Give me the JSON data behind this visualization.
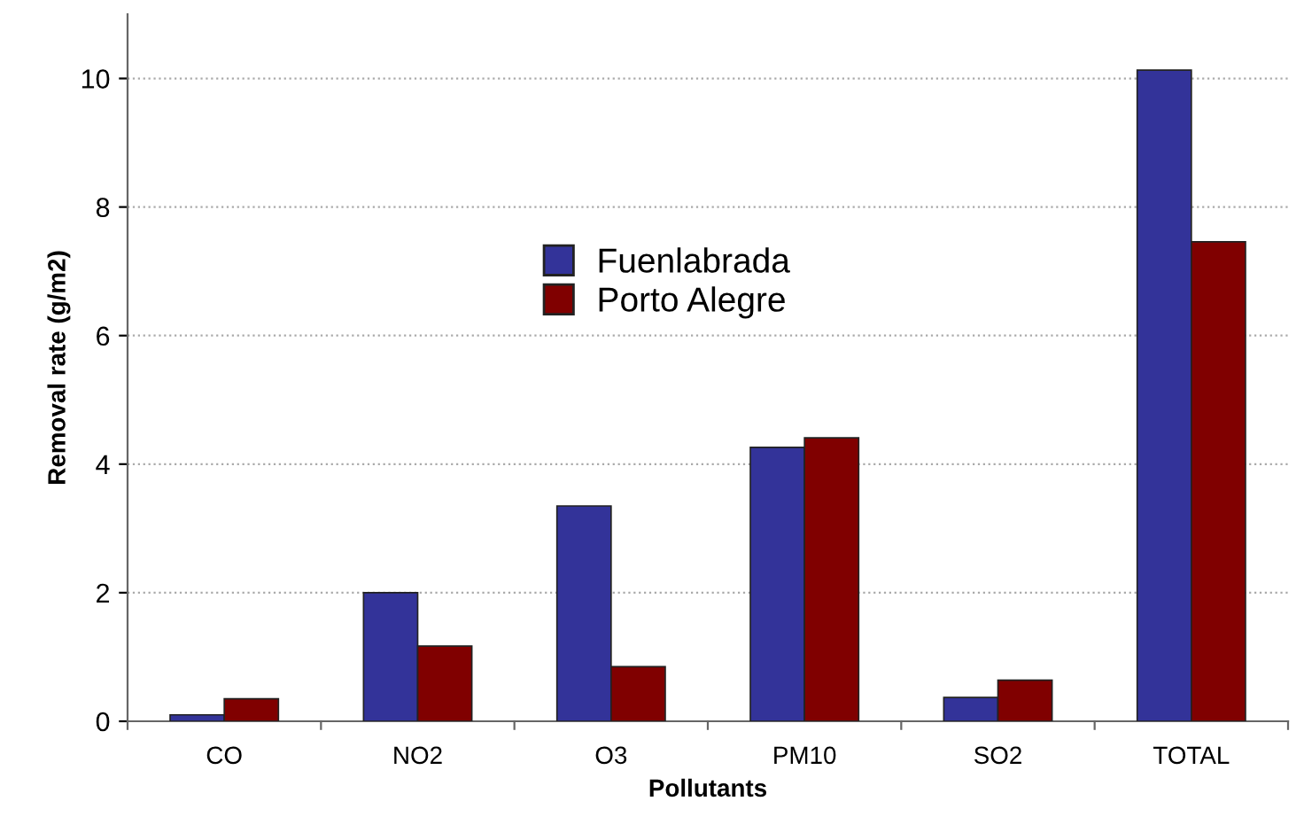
{
  "chart_data": {
    "type": "bar",
    "xlabel": "Pollutants",
    "ylabel": "Removal rate (g/m2)",
    "categories": [
      "CO",
      "NO2",
      "O3",
      "PM10",
      "SO2",
      "TOTAL"
    ],
    "series": [
      {
        "name": "Fuenlabrada",
        "color": "#333399",
        "values": [
          0.1,
          2.0,
          3.35,
          4.26,
          0.37,
          10.13
        ]
      },
      {
        "name": "Porto Alegre",
        "color": "#800000",
        "values": [
          0.35,
          1.17,
          0.85,
          4.41,
          0.64,
          7.46
        ]
      }
    ],
    "ylim": [
      0,
      11
    ],
    "yticks": [
      0,
      2,
      4,
      6,
      8,
      10
    ],
    "grid": "y",
    "legend": "top center"
  }
}
